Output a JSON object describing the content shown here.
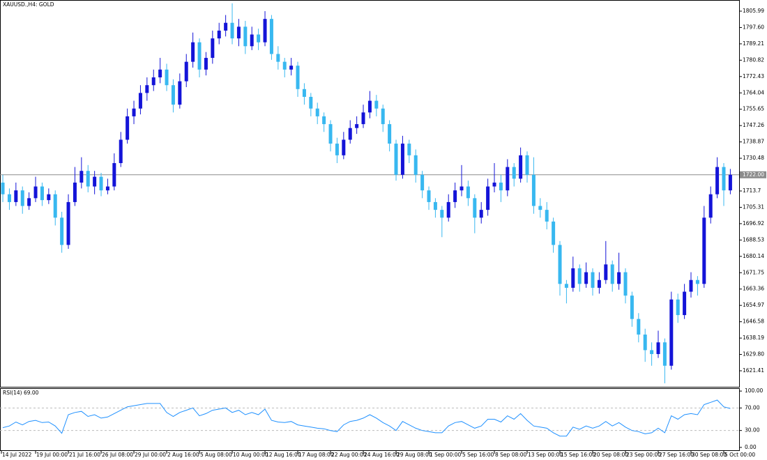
{
  "chart_data": [
    {
      "type": "candlestick",
      "title": "XAUUSD.,H4: GOLD",
      "up_color": "#1414d8",
      "down_color": "#38b8f0",
      "xlim": [
        -0.43,
        112.34
      ],
      "ylim": [
        1613.18,
        1811.71
      ],
      "yticks": [
        1805.99,
        {
          "value": 1797.6,
          "label": "1797.60"
        },
        1789.21,
        1780.82,
        1772.43,
        1764.04,
        1755.65,
        1747.26,
        1738.87,
        1730.48,
        1713.7,
        1705.31,
        1696.92,
        1688.53,
        1680.14,
        1671.75,
        1663.36,
        1654.97,
        1646.58,
        1638.19,
        {
          "value": 1629.8,
          "label": "1629.80"
        },
        1621.41
      ],
      "last_price": {
        "value": 1722,
        "label": "1722.00"
      },
      "candles": [
        [
          1718,
          1722,
          1708,
          1712
        ],
        [
          1712,
          1715,
          1704,
          1708
        ],
        [
          1708,
          1718,
          1706,
          1714
        ],
        [
          1714,
          1716,
          1702,
          1706
        ],
        [
          1706,
          1713,
          1704,
          1710
        ],
        [
          1710,
          1721,
          1708,
          1716
        ],
        [
          1716,
          1718,
          1706,
          1709
        ],
        [
          1709,
          1715,
          1707,
          1712
        ],
        [
          1712,
          1714,
          1696,
          1700
        ],
        [
          1700,
          1703,
          1682,
          1686
        ],
        [
          1686,
          1712,
          1684,
          1708
        ],
        [
          1708,
          1726,
          1706,
          1718
        ],
        [
          1718,
          1731,
          1715,
          1724
        ],
        [
          1724,
          1727,
          1713,
          1716
        ],
        [
          1716,
          1724,
          1712,
          1721
        ],
        [
          1721,
          1723,
          1711,
          1714
        ],
        [
          1714,
          1720,
          1712,
          1716
        ],
        [
          1716,
          1733,
          1714,
          1728
        ],
        [
          1728,
          1744,
          1726,
          1740
        ],
        [
          1740,
          1756,
          1738,
          1752
        ],
        [
          1752,
          1760,
          1748,
          1756
        ],
        [
          1756,
          1768,
          1753,
          1764
        ],
        [
          1764,
          1772,
          1760,
          1768
        ],
        [
          1768,
          1776,
          1765,
          1772
        ],
        [
          1772,
          1782,
          1769,
          1776
        ],
        [
          1776,
          1779,
          1765,
          1768
        ],
        [
          1768,
          1771,
          1754,
          1758
        ],
        [
          1758,
          1774,
          1756,
          1770
        ],
        [
          1770,
          1784,
          1767,
          1780
        ],
        [
          1780,
          1795,
          1777,
          1790
        ],
        [
          1790,
          1792,
          1772,
          1776
        ],
        [
          1776,
          1785,
          1773,
          1782
        ],
        [
          1782,
          1796,
          1779,
          1792
        ],
        [
          1792,
          1800,
          1789,
          1796
        ],
        [
          1796,
          1804,
          1793,
          1800
        ],
        [
          1800,
          1810,
          1789,
          1792
        ],
        [
          1792,
          1802,
          1788,
          1798
        ],
        [
          1798,
          1801,
          1784,
          1788
        ],
        [
          1788,
          1798,
          1786,
          1794
        ],
        [
          1794,
          1797,
          1786,
          1790
        ],
        [
          1790,
          1806,
          1788,
          1802
        ],
        [
          1802,
          1804,
          1781,
          1784
        ],
        [
          1784,
          1788,
          1776,
          1780
        ],
        [
          1780,
          1782,
          1772,
          1776
        ],
        [
          1776,
          1782,
          1773,
          1778
        ],
        [
          1778,
          1780,
          1762,
          1766
        ],
        [
          1766,
          1769,
          1758,
          1762
        ],
        [
          1762,
          1764,
          1752,
          1756
        ],
        [
          1756,
          1759,
          1748,
          1752
        ],
        [
          1752,
          1754,
          1744,
          1748
        ],
        [
          1748,
          1750,
          1734,
          1738
        ],
        [
          1738,
          1741,
          1728,
          1732
        ],
        [
          1732,
          1744,
          1730,
          1740
        ],
        [
          1740,
          1750,
          1738,
          1746
        ],
        [
          1746,
          1752,
          1743,
          1748
        ],
        [
          1748,
          1758,
          1746,
          1754
        ],
        [
          1754,
          1765,
          1751,
          1760
        ],
        [
          1760,
          1763,
          1752,
          1756
        ],
        [
          1756,
          1758,
          1744,
          1748
        ],
        [
          1748,
          1750,
          1734,
          1738
        ],
        [
          1738,
          1740,
          1719,
          1722
        ],
        [
          1722,
          1742,
          1720,
          1738
        ],
        [
          1738,
          1740,
          1728,
          1732
        ],
        [
          1732,
          1735,
          1718,
          1722
        ],
        [
          1722,
          1724,
          1710,
          1714
        ],
        [
          1714,
          1716,
          1704,
          1708
        ],
        [
          1708,
          1710,
          1700,
          1704
        ],
        [
          1704,
          1706,
          1690,
          1700
        ],
        [
          1700,
          1712,
          1698,
          1708
        ],
        [
          1708,
          1718,
          1705,
          1714
        ],
        [
          1714,
          1727,
          1711,
          1716
        ],
        [
          1716,
          1719,
          1706,
          1710
        ],
        [
          1710,
          1712,
          1692,
          1700
        ],
        [
          1700,
          1708,
          1697,
          1704
        ],
        [
          1704,
          1720,
          1701,
          1716
        ],
        [
          1716,
          1728,
          1713,
          1718
        ],
        [
          1718,
          1722,
          1708,
          1714
        ],
        [
          1714,
          1730,
          1711,
          1726
        ],
        [
          1726,
          1728,
          1716,
          1720
        ],
        [
          1720,
          1736,
          1718,
          1732
        ],
        [
          1732,
          1734,
          1718,
          1722
        ],
        [
          1722,
          1731,
          1702,
          1706
        ],
        [
          1706,
          1710,
          1700,
          1704
        ],
        [
          1704,
          1708,
          1694,
          1698
        ],
        [
          1698,
          1700,
          1682,
          1686
        ],
        [
          1686,
          1688,
          1660,
          1666
        ],
        [
          1666,
          1668,
          1656,
          1664
        ],
        [
          1664,
          1680,
          1662,
          1674
        ],
        [
          1674,
          1676,
          1662,
          1666
        ],
        [
          1666,
          1677,
          1664,
          1672
        ],
        [
          1672,
          1674,
          1660,
          1664
        ],
        [
          1664,
          1672,
          1661,
          1668
        ],
        [
          1668,
          1688,
          1666,
          1676
        ],
        [
          1676,
          1678,
          1662,
          1666
        ],
        [
          1666,
          1682,
          1663,
          1672
        ],
        [
          1672,
          1674,
          1656,
          1660
        ],
        [
          1660,
          1662,
          1644,
          1648
        ],
        [
          1648,
          1651,
          1636,
          1640
        ],
        [
          1640,
          1643,
          1626,
          1632
        ],
        [
          1632,
          1636,
          1624,
          1630
        ],
        [
          1630,
          1642,
          1628,
          1636
        ],
        [
          1636,
          1638,
          1615,
          1624
        ],
        [
          1624,
          1662,
          1622,
          1658
        ],
        [
          1658,
          1661,
          1646,
          1650
        ],
        [
          1650,
          1666,
          1648,
          1662
        ],
        [
          1662,
          1672,
          1659,
          1668
        ],
        [
          1668,
          1670,
          1660,
          1666
        ],
        [
          1666,
          1706,
          1664,
          1700
        ],
        [
          1700,
          1716,
          1697,
          1712
        ],
        [
          1712,
          1731,
          1710,
          1726
        ],
        [
          1726,
          1728,
          1706,
          1714
        ],
        [
          1714,
          1725,
          1712,
          1722
        ]
      ]
    },
    {
      "type": "line",
      "title": "RSI(14) 69.00",
      "color": "#1e90ff",
      "xlim": [
        -0.43,
        112.34
      ],
      "ylim": [
        -6.3,
        105.06
      ],
      "yticks": [
        {
          "value": 100,
          "label": "100.00"
        },
        {
          "value": 70,
          "label": "70.00"
        },
        {
          "value": 30,
          "label": "30.00"
        },
        {
          "value": 0,
          "label": "0.00"
        }
      ],
      "levels": [
        70,
        30
      ],
      "xticks": [
        {
          "value": 0,
          "label": "14 Jul 2022"
        },
        {
          "value": 5,
          "label": "19 Jul 00:00"
        },
        {
          "value": 10,
          "label": "21 Jul 16:00"
        },
        {
          "value": 15,
          "label": "26 Jul 08:00"
        },
        {
          "value": 20,
          "label": "29 Jul 00:00"
        },
        {
          "value": 25,
          "label": "2 Aug 16:00"
        },
        {
          "value": 30,
          "label": "5 Aug 08:00"
        },
        {
          "value": 35,
          "label": "10 Aug 00:00"
        },
        {
          "value": 40,
          "label": "12 Aug 16:00"
        },
        {
          "value": 45,
          "label": "17 Aug 08:00"
        },
        {
          "value": 50,
          "label": "22 Aug 00:00"
        },
        {
          "value": 55,
          "label": "24 Aug 16:00"
        },
        {
          "value": 60,
          "label": "29 Aug 08:00"
        },
        {
          "value": 65,
          "label": "1 Sep 00:00"
        },
        {
          "value": 70,
          "label": "5 Sep 16:00"
        },
        {
          "value": 75,
          "label": "8 Sep 08:00"
        },
        {
          "value": 80,
          "label": "13 Sep 00:00"
        },
        {
          "value": 85,
          "label": "15 Sep 16:00"
        },
        {
          "value": 90,
          "label": "20 Sep 08:00"
        },
        {
          "value": 95,
          "label": "23 Sep 00:00"
        },
        {
          "value": 100,
          "label": "27 Sep 16:00"
        },
        {
          "value": 105,
          "label": "30 Sep 08:00"
        },
        {
          "value": 110,
          "label": "5 Oct 00:00"
        }
      ],
      "values": [
        35,
        38,
        45,
        40,
        46,
        48,
        44,
        45,
        38,
        25,
        58,
        62,
        64,
        55,
        58,
        52,
        54,
        60,
        66,
        72,
        74,
        76,
        78,
        78,
        78,
        62,
        55,
        62,
        66,
        70,
        56,
        60,
        66,
        68,
        70,
        62,
        66,
        58,
        62,
        58,
        68,
        48,
        45,
        44,
        46,
        40,
        38,
        36,
        34,
        33,
        30,
        28,
        40,
        46,
        48,
        52,
        58,
        52,
        44,
        38,
        30,
        46,
        40,
        34,
        30,
        28,
        26,
        26,
        38,
        44,
        46,
        40,
        34,
        38,
        50,
        50,
        45,
        56,
        50,
        60,
        48,
        38,
        36,
        34,
        26,
        20,
        20,
        36,
        32,
        38,
        34,
        38,
        46,
        38,
        44,
        36,
        30,
        28,
        24,
        26,
        34,
        26,
        56,
        50,
        58,
        60,
        58,
        76,
        80,
        84,
        72,
        69
      ]
    }
  ]
}
